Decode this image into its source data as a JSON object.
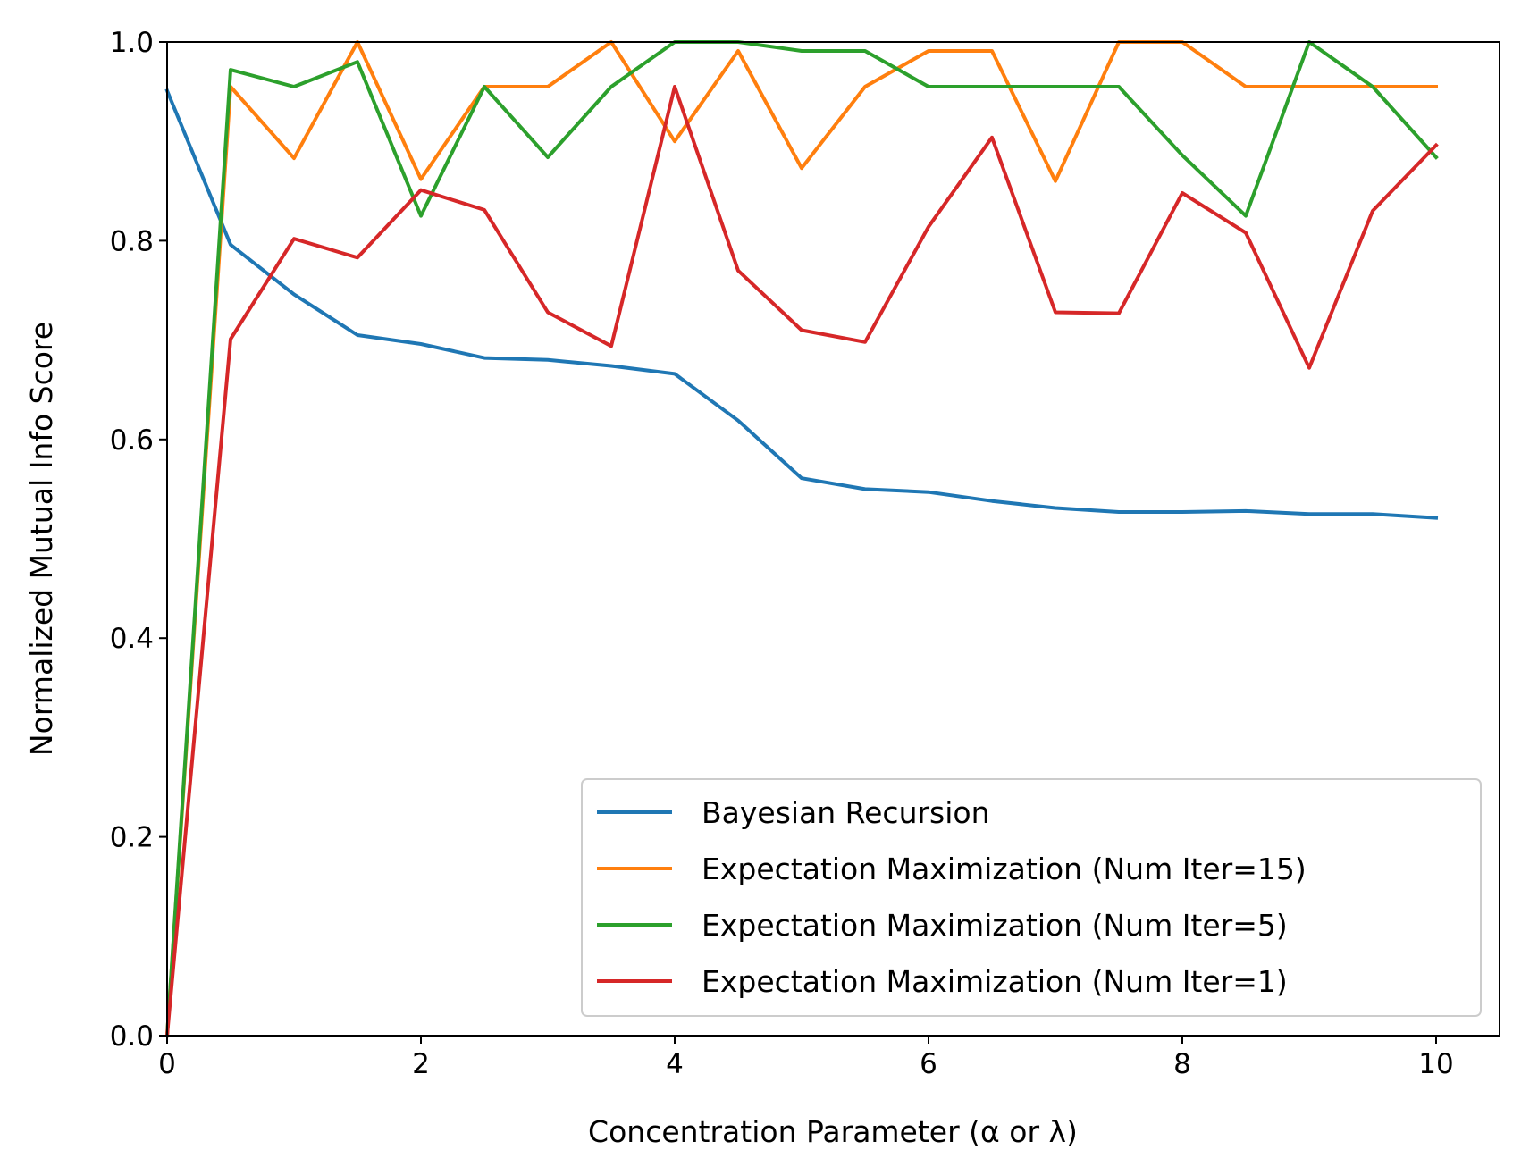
{
  "chart_data": {
    "type": "line",
    "title": "",
    "xlabel": "Concentration Parameter (α or λ)",
    "ylabel": "Normalized Mutual Info Score",
    "xlim": [
      0,
      10.5
    ],
    "ylim": [
      0,
      1.0
    ],
    "xticks": [
      0,
      2,
      4,
      6,
      8,
      10
    ],
    "xtick_labels": [
      "0",
      "2",
      "4",
      "6",
      "8",
      "10"
    ],
    "yticks": [
      0.0,
      0.2,
      0.4,
      0.6,
      0.8,
      1.0
    ],
    "ytick_labels": [
      "0.0",
      "0.2",
      "0.4",
      "0.6",
      "0.8",
      "1.0"
    ],
    "grid": false,
    "legend_position": "lower-right",
    "x": [
      0,
      0.5,
      1,
      1.5,
      2,
      2.5,
      3,
      3.5,
      4,
      4.5,
      5,
      5.5,
      6,
      6.5,
      7,
      7.5,
      8,
      8.5,
      9,
      9.5,
      10
    ],
    "series": [
      {
        "name": "Bayesian Recursion",
        "color": "#1f77b4",
        "values": [
          0.951,
          0.796,
          0.746,
          0.705,
          0.696,
          0.682,
          0.68,
          0.674,
          0.666,
          0.619,
          0.561,
          0.55,
          0.547,
          0.538,
          0.531,
          0.527,
          0.527,
          0.528,
          0.525,
          0.525,
          0.521
        ]
      },
      {
        "name": "Expectation Maximization (Num Iter=15)",
        "color": "#ff7f0e",
        "values": [
          0.0,
          0.955,
          0.883,
          1.0,
          0.862,
          0.955,
          0.955,
          1.0,
          0.9,
          0.991,
          0.873,
          0.955,
          0.991,
          0.991,
          0.86,
          1.0,
          1.0,
          0.955,
          0.955,
          0.955,
          0.955
        ]
      },
      {
        "name": "Expectation Maximization (Num Iter=5)",
        "color": "#2ca02c",
        "values": [
          0.0,
          0.972,
          0.955,
          0.98,
          0.825,
          0.955,
          0.884,
          0.955,
          1.0,
          1.0,
          0.991,
          0.991,
          0.955,
          0.955,
          0.955,
          0.955,
          0.886,
          0.825,
          1.0,
          0.955,
          0.884
        ]
      },
      {
        "name": "Expectation Maximization (Num Iter=1)",
        "color": "#d62728",
        "values": [
          0.0,
          0.701,
          0.802,
          0.783,
          0.851,
          0.831,
          0.728,
          0.694,
          0.955,
          0.77,
          0.71,
          0.698,
          0.814,
          0.904,
          0.728,
          0.727,
          0.848,
          0.808,
          0.672,
          0.83,
          0.896
        ]
      }
    ]
  }
}
